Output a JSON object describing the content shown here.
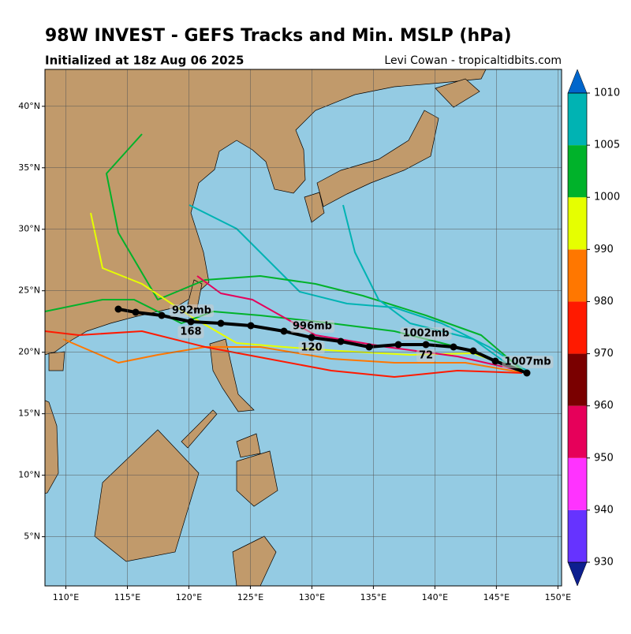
{
  "header": {
    "title": "98W INVEST - GEFS Tracks and Min. MSLP (hPa)",
    "subtitle": "Initialized at 18z Aug 06 2025",
    "credit": "Levi Cowan - tropicaltidbits.com"
  },
  "map": {
    "xlim": [
      108.3,
      150.3
    ],
    "ylim": [
      1,
      43
    ],
    "xticks": [
      {
        "value": 110,
        "label": "110°E"
      },
      {
        "value": 115,
        "label": "115°E"
      },
      {
        "value": 120,
        "label": "120°E"
      },
      {
        "value": 125,
        "label": "125°E"
      },
      {
        "value": 130,
        "label": "130°E"
      },
      {
        "value": 135,
        "label": "135°E"
      },
      {
        "value": 140,
        "label": "140°E"
      },
      {
        "value": 145,
        "label": "145°E"
      },
      {
        "value": 150,
        "label": "150°E"
      }
    ],
    "yticks": [
      {
        "value": 5,
        "label": "5°N"
      },
      {
        "value": 10,
        "label": "10°N"
      },
      {
        "value": 15,
        "label": "15°N"
      },
      {
        "value": 20,
        "label": "20°N"
      },
      {
        "value": 25,
        "label": "25°N"
      },
      {
        "value": 30,
        "label": "30°N"
      },
      {
        "value": 35,
        "label": "35°N"
      },
      {
        "value": 40,
        "label": "40°N"
      }
    ],
    "mean_track_labels": [
      "1007mb",
      "72",
      "1002mb",
      "120",
      "996mb",
      "168",
      "992mb"
    ]
  },
  "colorbar": {
    "ticks": [
      930,
      940,
      950,
      960,
      970,
      980,
      990,
      1000,
      1005,
      1010
    ],
    "colors": [
      "#0d1f8f",
      "#6633ff",
      "#ff33ff",
      "#e6005a",
      "#7a0000",
      "#ff1a00",
      "#ff7700",
      "#e6ff00",
      "#00b22a",
      "#00b3b3",
      "#0066cc"
    ]
  }
}
